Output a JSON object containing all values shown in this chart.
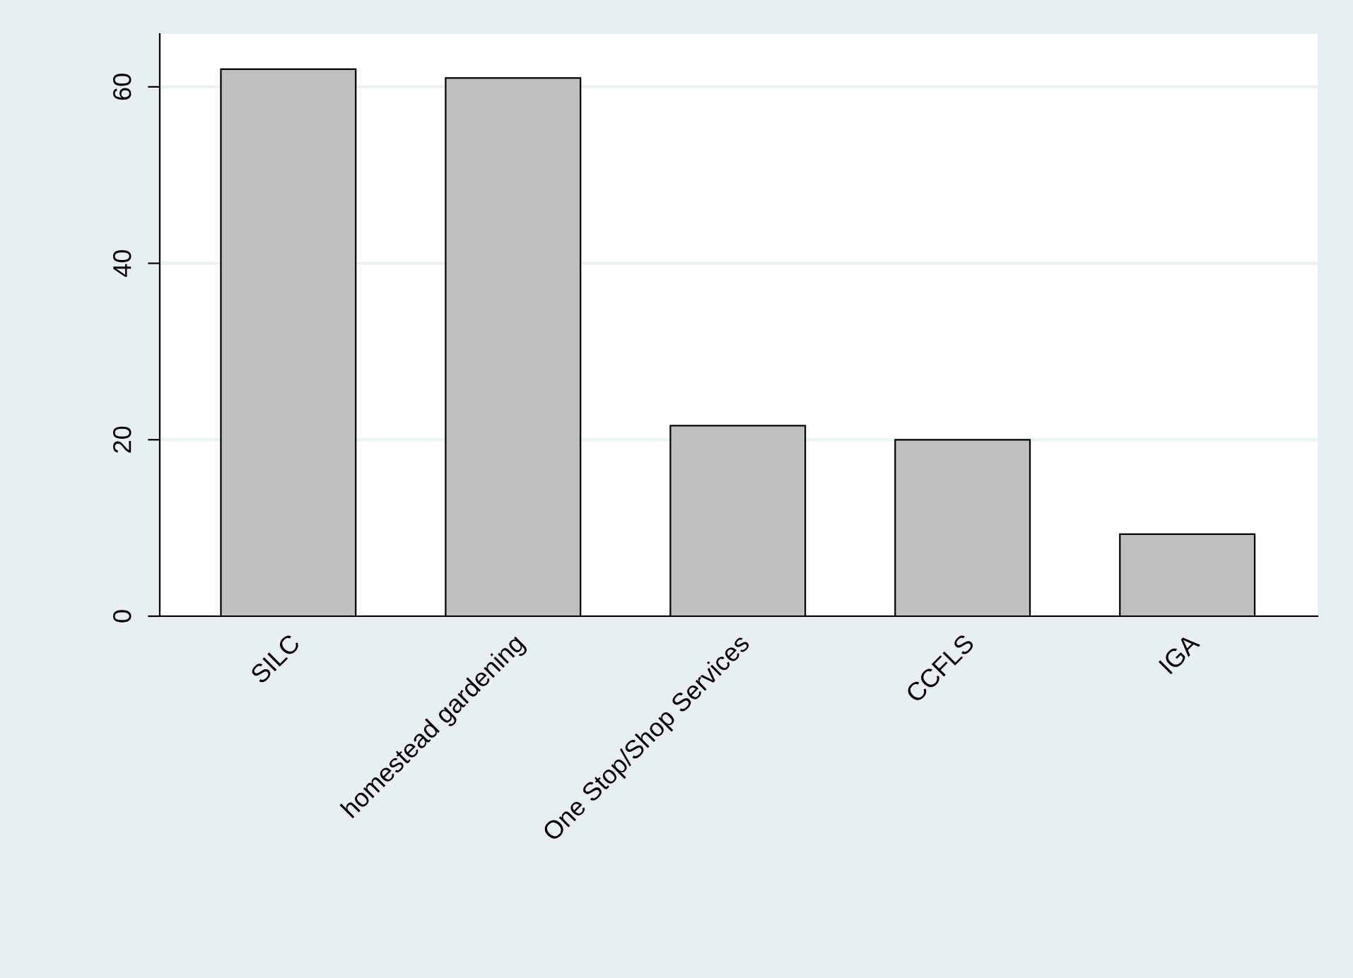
{
  "chart_data": {
    "type": "bar",
    "categories": [
      "SILC",
      "homestead gardening",
      "One Stop/Shop Services",
      "CCFLS",
      "IGA"
    ],
    "values": [
      62,
      61,
      21.6,
      20,
      9.3
    ],
    "color": "#bfbfbf",
    "ylim": [
      0,
      66
    ],
    "yticks": [
      0,
      20,
      40,
      60
    ],
    "grid": "y"
  }
}
